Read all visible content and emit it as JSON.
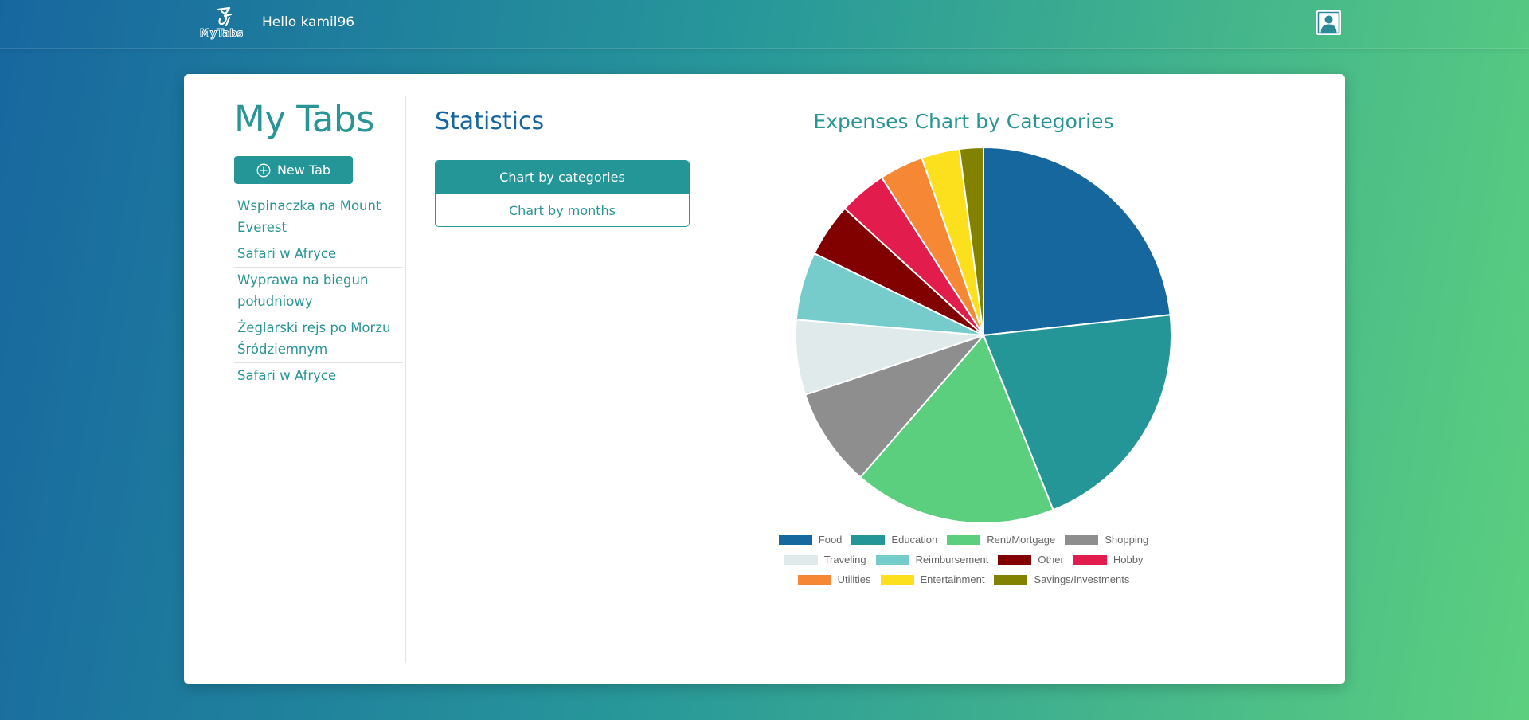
{
  "header": {
    "logo_text": "MyTabs",
    "greeting": "Hello kamil96",
    "user_icon": "user-profile-icon"
  },
  "sidebar": {
    "title": "My Tabs",
    "new_tab_label": "New Tab",
    "new_tab_icon": "plus-circle-icon",
    "tabs": [
      "Wspinaczka na Mount Everest",
      "Safari w Afryce",
      "Wyprawa na biegun południowy",
      "Żeglarski rejs po Morzu Śródziemnym",
      "Safari w Afryce"
    ]
  },
  "statistics": {
    "title": "Statistics",
    "buttons": [
      {
        "label": "Chart by categories",
        "active": true
      },
      {
        "label": "Chart by months",
        "active": false
      }
    ]
  },
  "colors": {
    "accent": "#259698",
    "primary_blue": "#17679f",
    "gradient_start": "#17679f",
    "gradient_end": "#5ccf7f"
  },
  "chart_data": {
    "type": "pie",
    "title": "Expenses Chart by Categories",
    "legend_position": "bottom",
    "categories": [
      "Food",
      "Education",
      "Rent/Mortgage",
      "Shopping",
      "Traveling",
      "Reimbursement",
      "Other",
      "Hobby",
      "Utilities",
      "Entertainment",
      "Savings/Investments"
    ],
    "values": [
      22.7,
      20.2,
      17.0,
      8.3,
      6.3,
      5.7,
      4.5,
      4.0,
      3.7,
      3.2,
      2.0
    ],
    "colors": [
      "#17679f",
      "#259698",
      "#5ccf7f",
      "#8e8e8e",
      "#e1eaeb",
      "#75cccb",
      "#810000",
      "#e21c4d",
      "#f58735",
      "#fcdf1d",
      "#838200"
    ]
  }
}
